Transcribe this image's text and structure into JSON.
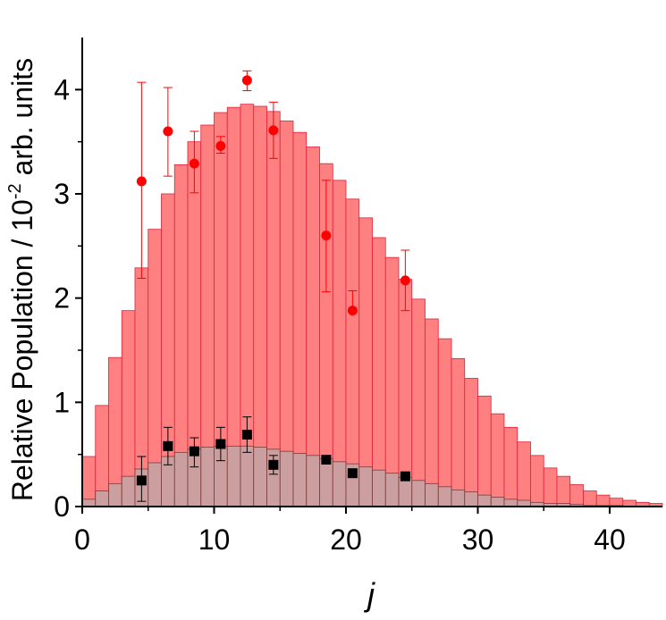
{
  "chart_data": {
    "type": "bar",
    "xlabel": "j",
    "ylabel_main": "Relative Population / 10",
    "ylabel_sup": "-2",
    "ylabel_tail": " arb. units",
    "xlim": [
      0,
      44
    ],
    "ylim": [
      0,
      4.5
    ],
    "x_ticks": [
      0,
      10,
      20,
      30,
      40
    ],
    "y_ticks": [
      0,
      1,
      2,
      3,
      4
    ],
    "x_tick_labels": [
      "0",
      "10",
      "20",
      "30",
      "40"
    ],
    "y_tick_labels": [
      "0",
      "1",
      "2",
      "3",
      "4"
    ],
    "bar_width": 1,
    "bar_x": [
      0,
      1,
      2,
      3,
      4,
      5,
      6,
      7,
      8,
      9,
      10,
      11,
      12,
      13,
      14,
      15,
      16,
      17,
      18,
      19,
      20,
      21,
      22,
      23,
      24,
      25,
      26,
      27,
      28,
      29,
      30,
      31,
      32,
      33,
      34,
      35,
      36,
      37,
      38,
      39,
      40,
      41,
      42,
      43
    ],
    "bar_series": [
      {
        "values": [
          0.48,
          0.97,
          1.43,
          1.88,
          2.29,
          2.66,
          3.0,
          3.28,
          3.5,
          3.66,
          3.78,
          3.83,
          3.86,
          3.84,
          3.79,
          3.7,
          3.59,
          3.45,
          3.29,
          3.13,
          2.95,
          2.77,
          2.58,
          2.39,
          2.18,
          1.99,
          1.8,
          1.61,
          1.42,
          1.23,
          1.06,
          0.89,
          0.76,
          0.62,
          0.49,
          0.37,
          0.29,
          0.21,
          0.15,
          0.11,
          0.08,
          0.06,
          0.04,
          0.03
        ],
        "fill": "#ff8080",
        "stroke": "#e0203a"
      },
      {
        "values": [
          0.07,
          0.15,
          0.22,
          0.29,
          0.36,
          0.42,
          0.48,
          0.52,
          0.55,
          0.57,
          0.58,
          0.58,
          0.58,
          0.57,
          0.55,
          0.53,
          0.51,
          0.49,
          0.46,
          0.43,
          0.41,
          0.38,
          0.35,
          0.32,
          0.28,
          0.25,
          0.22,
          0.19,
          0.16,
          0.14,
          0.11,
          0.09,
          0.07,
          0.06,
          0.04,
          0.03,
          0.03,
          0.02,
          0.01,
          0.01,
          0.01,
          0.0,
          0.0,
          0.0
        ],
        "fill": "#c8a0a0",
        "stroke": "#7a3a3a"
      }
    ],
    "scatter_series": [
      {
        "marker": "circle",
        "color": "#ff0000",
        "points": [
          {
            "x": 4.5,
            "y": 3.12,
            "yerr_low": 0.93,
            "yerr_high": 0.95
          },
          {
            "x": 6.5,
            "y": 3.6,
            "yerr_low": 0.43,
            "yerr_high": 0.42
          },
          {
            "x": 8.5,
            "y": 3.29,
            "yerr_low": 0.28,
            "yerr_high": 0.31
          },
          {
            "x": 10.5,
            "y": 3.46,
            "yerr_low": 0.07,
            "yerr_high": 0.09
          },
          {
            "x": 12.5,
            "y": 4.09,
            "yerr_low": 0.1,
            "yerr_high": 0.09
          },
          {
            "x": 14.5,
            "y": 3.61,
            "yerr_low": 0.27,
            "yerr_high": 0.27
          },
          {
            "x": 18.5,
            "y": 2.6,
            "yerr_low": 0.54,
            "yerr_high": 0.53
          },
          {
            "x": 20.5,
            "y": 1.88,
            "yerr_low": 0.0,
            "yerr_high": 0.19
          },
          {
            "x": 24.5,
            "y": 2.17,
            "yerr_low": 0.29,
            "yerr_high": 0.29
          }
        ]
      },
      {
        "marker": "square",
        "color": "#000000",
        "points": [
          {
            "x": 4.5,
            "y": 0.25,
            "yerr_low": 0.2,
            "yerr_high": 0.23
          },
          {
            "x": 6.5,
            "y": 0.58,
            "yerr_low": 0.18,
            "yerr_high": 0.18
          },
          {
            "x": 8.5,
            "y": 0.53,
            "yerr_low": 0.15,
            "yerr_high": 0.13
          },
          {
            "x": 10.5,
            "y": 0.6,
            "yerr_low": 0.16,
            "yerr_high": 0.16
          },
          {
            "x": 12.5,
            "y": 0.69,
            "yerr_low": 0.17,
            "yerr_high": 0.17
          },
          {
            "x": 14.5,
            "y": 0.4,
            "yerr_low": 0.09,
            "yerr_high": 0.09
          },
          {
            "x": 18.5,
            "y": 0.45,
            "yerr_low": 0.03,
            "yerr_high": 0.03
          },
          {
            "x": 20.5,
            "y": 0.32,
            "yerr_low": 0.03,
            "yerr_high": 0.03
          },
          {
            "x": 24.5,
            "y": 0.29,
            "yerr_low": 0.02,
            "yerr_high": 0.02
          }
        ]
      }
    ],
    "grid": false,
    "legend": "none"
  }
}
